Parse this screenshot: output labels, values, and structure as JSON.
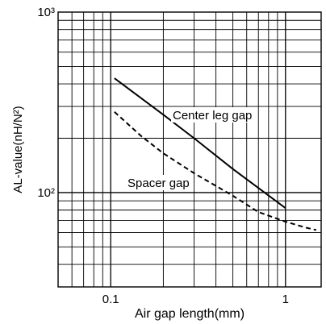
{
  "chart_data": {
    "type": "line",
    "title": "",
    "xlabel": "Air gap length(mm)",
    "ylabel": "AL-value(nH/N²)",
    "x_scale": "log",
    "y_scale": "log",
    "xlim": [
      0.05,
      1.6
    ],
    "ylim": [
      30,
      1000
    ],
    "grid": true,
    "x_ticks": [
      {
        "value": 0.1,
        "label": "0.1"
      },
      {
        "value": 1,
        "label": "1"
      }
    ],
    "y_ticks": [
      {
        "value": 100,
        "label": "10²"
      },
      {
        "value": 1000,
        "label": "10³"
      }
    ],
    "series": [
      {
        "name": "Center leg gap",
        "style": "solid",
        "color": "#000000",
        "x": [
          0.105,
          0.2,
          0.3,
          0.5,
          1.0
        ],
        "y": [
          430,
          270,
          200,
          135,
          82
        ]
      },
      {
        "name": "Spacer gap",
        "style": "dashed",
        "color": "#000000",
        "x": [
          0.105,
          0.15,
          0.2,
          0.3,
          0.5,
          0.7,
          1.0,
          1.3,
          1.5
        ],
        "y": [
          280,
          205,
          165,
          128,
          96,
          78,
          69,
          64,
          62
        ]
      }
    ]
  }
}
